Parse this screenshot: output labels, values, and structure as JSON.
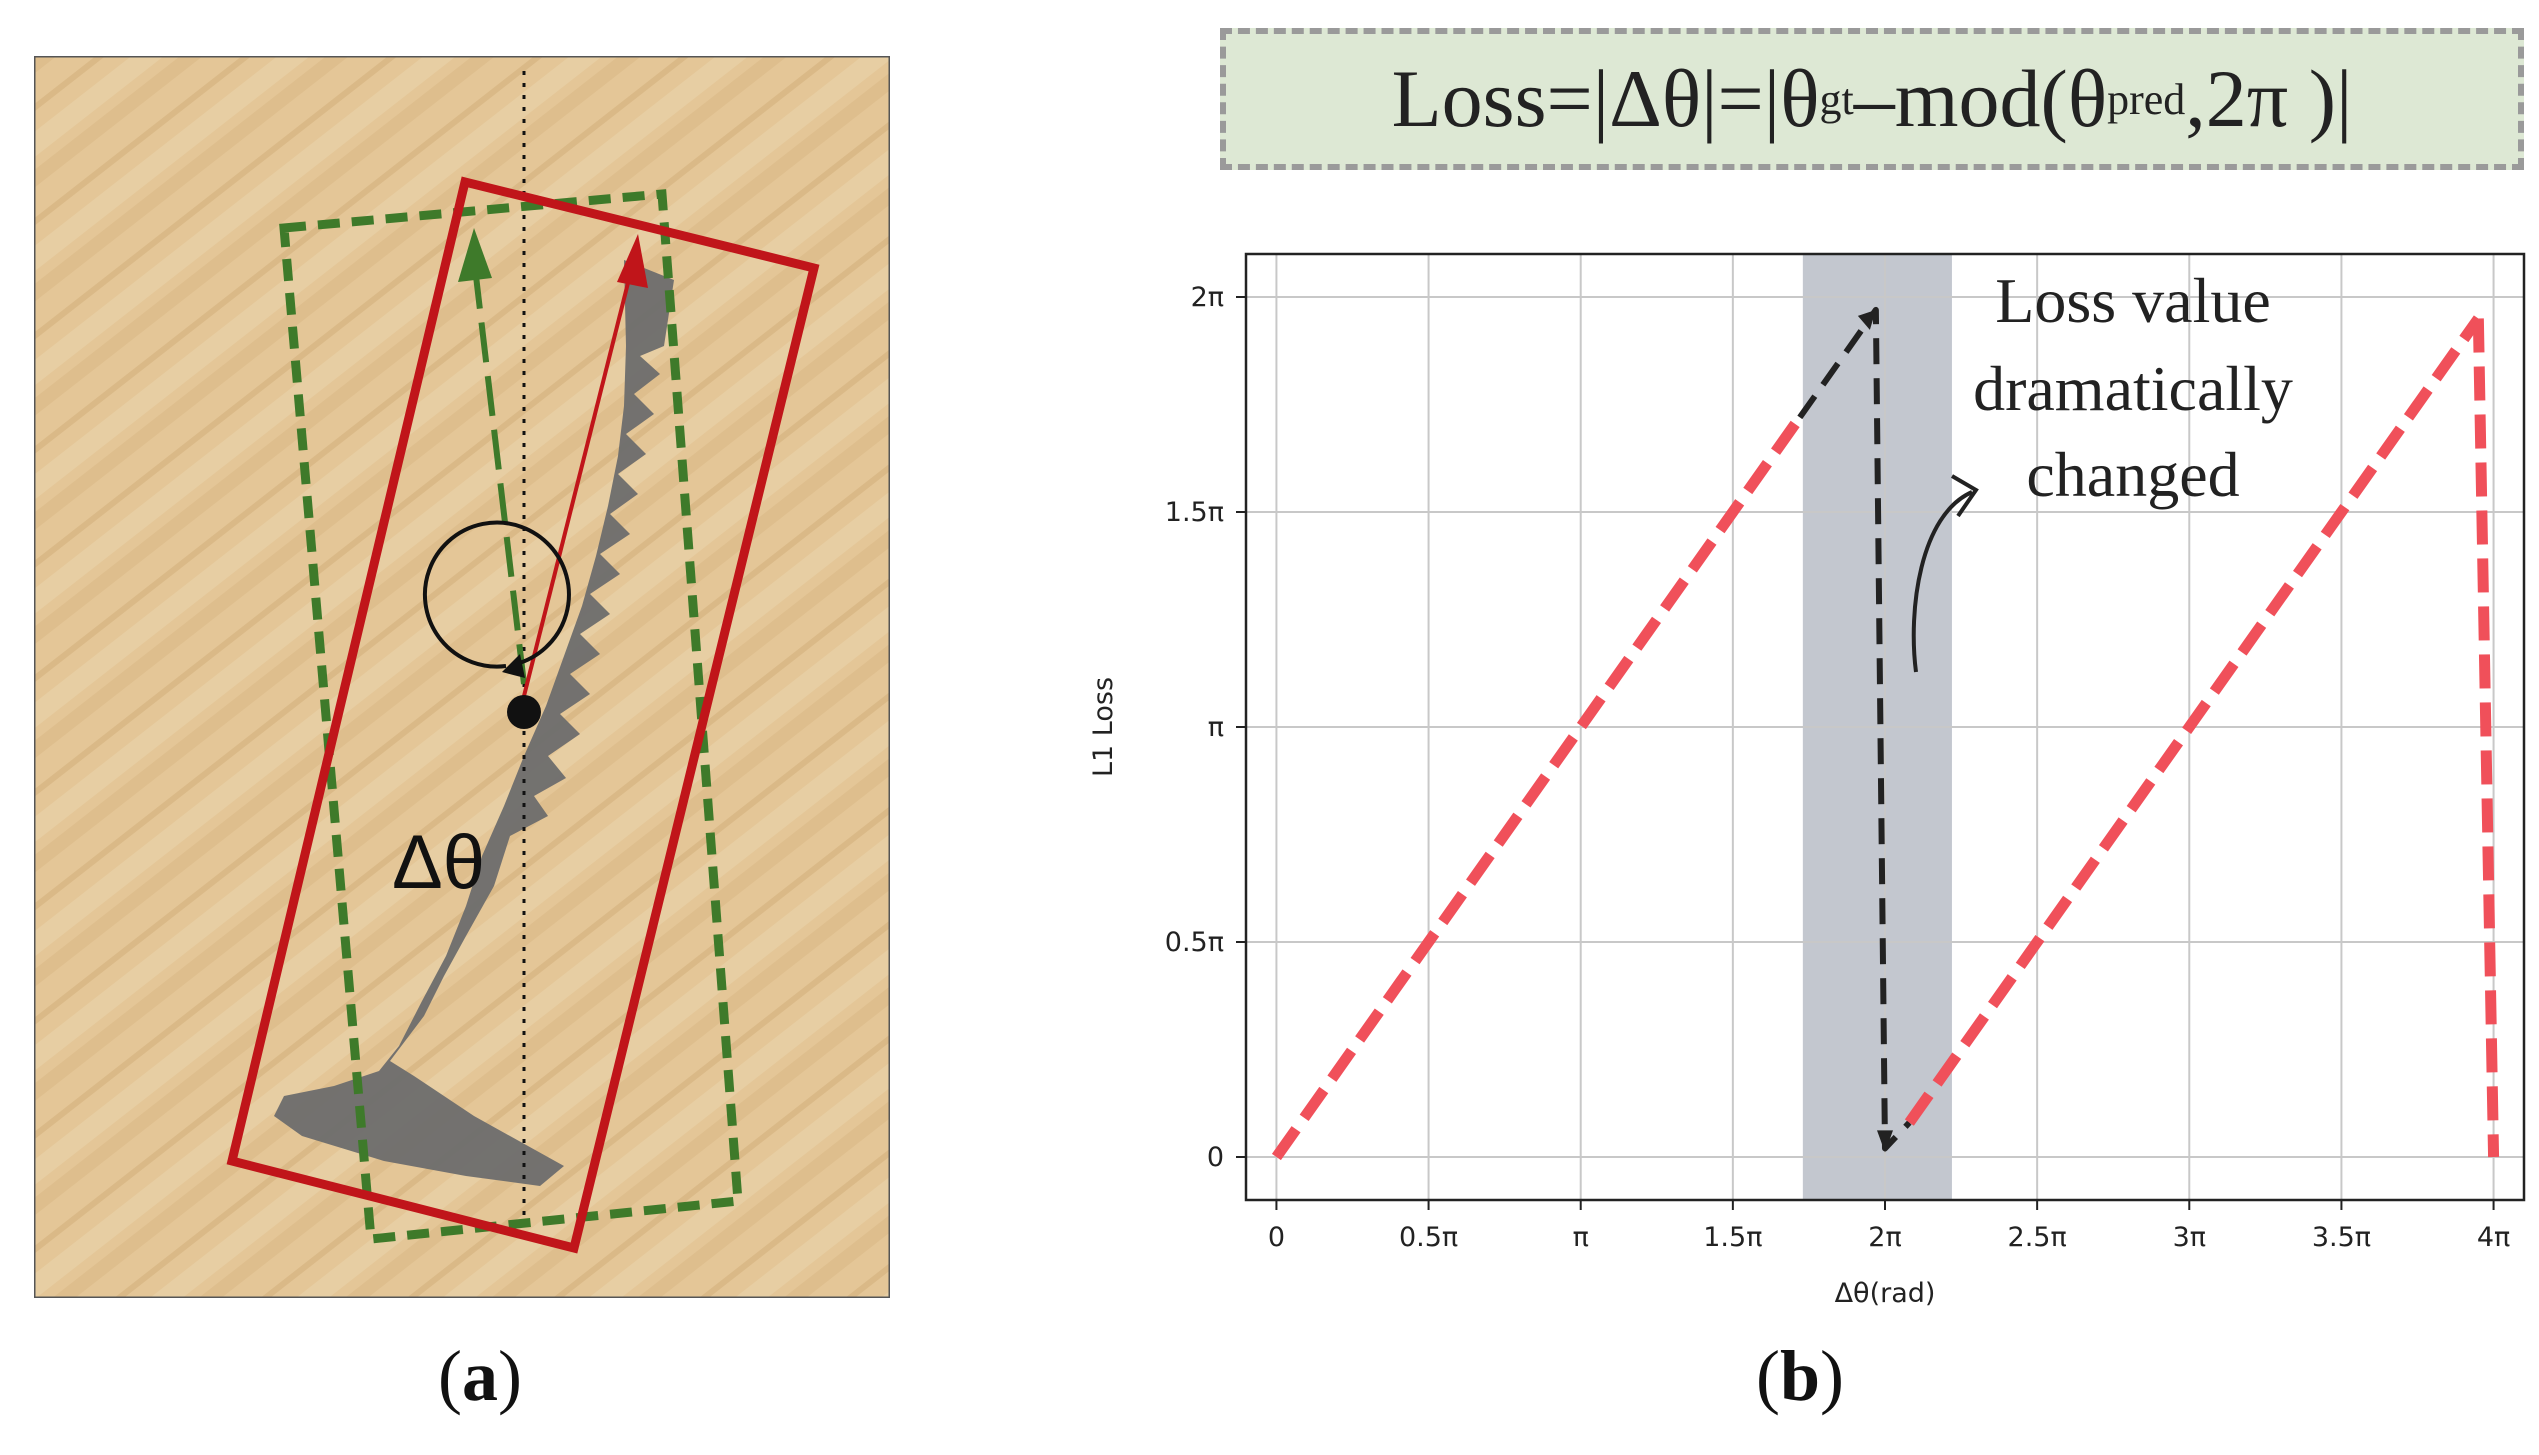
{
  "panel_a": {
    "delta_theta_label": "Δθ",
    "caption_open": "(",
    "caption_letter": "a",
    "caption_close": ")",
    "colors": {
      "predicted_box": "#c0151a",
      "ground_truth_box": "#3e7a2a",
      "background": "#e3c597",
      "object": "#6b6b6b"
    }
  },
  "panel_b": {
    "formula": {
      "prefix": "Loss=|Δθ|=|θ",
      "sub_gt": "gt",
      "middle": "–mod(θ",
      "sub_pred": "pred",
      "suffix": ",2π )|",
      "colors": {
        "background": "#dde8d4",
        "border": "#9a9a9a"
      }
    },
    "annotation": [
      "Loss value",
      "dramatically",
      "changed"
    ],
    "caption_open": "(",
    "caption_letter": "b",
    "caption_close": ")"
  },
  "chart_data": {
    "type": "line",
    "xlabel": "Δθ(rad)",
    "ylabel": "L1 Loss",
    "x_ticks": [
      {
        "value": 0,
        "label": "0"
      },
      {
        "value": 0.5,
        "label": "0.5π"
      },
      {
        "value": 1,
        "label": "π"
      },
      {
        "value": 1.5,
        "label": "1.5π"
      },
      {
        "value": 2,
        "label": "2π"
      },
      {
        "value": 2.5,
        "label": "2.5π"
      },
      {
        "value": 3,
        "label": "3π"
      },
      {
        "value": 3.5,
        "label": "3.5π"
      },
      {
        "value": 4,
        "label": "4π"
      }
    ],
    "y_ticks": [
      {
        "value": 0,
        "label": "0"
      },
      {
        "value": 0.5,
        "label": "0.5π"
      },
      {
        "value": 1,
        "label": "π"
      },
      {
        "value": 1.5,
        "label": "1.5π"
      },
      {
        "value": 2,
        "label": "2π"
      }
    ],
    "x_unit": "π rad",
    "y_unit": "π",
    "xlim": [
      -0.1,
      4.1
    ],
    "ylim": [
      -0.1,
      2.1
    ],
    "grid": true,
    "highlight_band": {
      "x_start": 1.73,
      "x_end": 2.22,
      "color": "#c3c7cf"
    },
    "series": [
      {
        "style": "red-dashed",
        "color": "#f0505a",
        "points": [
          [
            0,
            0
          ],
          [
            1.72,
            1.72
          ]
        ]
      },
      {
        "style": "black-dashed",
        "color": "#222222",
        "points": [
          [
            1.72,
            1.72
          ],
          [
            1.97,
            1.97
          ],
          [
            2.0,
            0.02
          ],
          [
            2.08,
            0.08
          ]
        ]
      },
      {
        "style": "red-dashed",
        "color": "#f0505a",
        "points": [
          [
            2.08,
            0.08
          ],
          [
            3.95,
            1.95
          ]
        ]
      },
      {
        "style": "red-dashed",
        "color": "#f0505a",
        "points": [
          [
            3.95,
            1.95
          ],
          [
            4.0,
            0
          ]
        ]
      }
    ]
  }
}
